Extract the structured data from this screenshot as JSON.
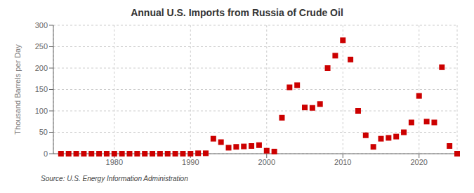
{
  "chart_data": {
    "type": "scatter",
    "title": "Annual U.S. Imports from Russia of Crude Oil",
    "y_label": "Thousand Barrels per Day",
    "annotations": [
      "Source: U.S. Energy Information Administration"
    ],
    "x": [
      1973,
      1974,
      1975,
      1976,
      1977,
      1978,
      1979,
      1980,
      1981,
      1982,
      1983,
      1984,
      1985,
      1986,
      1987,
      1988,
      1989,
      1990,
      1991,
      1992,
      1993,
      1994,
      1995,
      1996,
      1997,
      1998,
      1999,
      2000,
      2001,
      2002,
      2003,
      2004,
      2005,
      2006,
      2007,
      2008,
      2009,
      2010,
      2011,
      2012,
      2013,
      2014,
      2015,
      2016,
      2017,
      2018,
      2019,
      2020,
      2021,
      2022,
      2023,
      2024,
      2025
    ],
    "values": [
      0,
      0,
      0,
      0,
      0,
      0,
      0,
      0,
      0,
      0,
      0,
      0,
      0,
      0,
      0,
      0,
      0,
      0,
      1,
      1,
      35,
      27,
      14,
      16,
      17,
      18,
      20,
      7,
      5,
      84,
      155,
      160,
      108,
      107,
      116,
      200,
      229,
      265,
      220,
      100,
      43,
      16,
      35,
      37,
      40,
      50,
      73,
      135,
      75,
      73,
      202,
      18,
      0
    ],
    "color": "#cc0000",
    "marker": "square",
    "xlim": [
      1972,
      2025
    ],
    "xticks": [
      1980,
      1990,
      2000,
      2010,
      2020
    ],
    "ylim": [
      0,
      300
    ],
    "yticks": [
      0,
      50,
      100,
      150,
      200,
      250,
      300
    ],
    "grid": true
  }
}
